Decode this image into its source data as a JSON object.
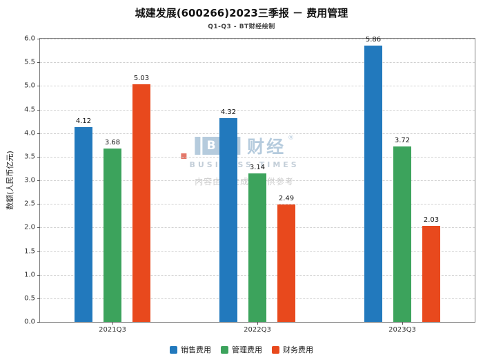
{
  "title": "城建发展(600266)2023三季报 － 费用管理",
  "subtitle": "Q1-Q3 - BT财经绘制",
  "watermark": {
    "logo_b": "B",
    "logo_t": "T",
    "logo_cn": "财经",
    "registered_mark": "®",
    "sub_text": "BUSINESS TIMES",
    "disclaimer": "内容由AI生成，仅供参考"
  },
  "chart_data": {
    "type": "bar",
    "categories": [
      "2021Q3",
      "2022Q3",
      "2023Q3"
    ],
    "series": [
      {
        "name": "销售费用",
        "color": "#2279bd",
        "values": [
          4.12,
          4.32,
          5.86
        ]
      },
      {
        "name": "管理费用",
        "color": "#3ca35c",
        "values": [
          3.68,
          3.14,
          3.72
        ]
      },
      {
        "name": "财务费用",
        "color": "#e8491d",
        "values": [
          5.03,
          2.49,
          2.03
        ]
      }
    ],
    "xlabel": "",
    "ylabel": "数额(人民币亿元)",
    "ylim": [
      0,
      6
    ],
    "ytick_step": 0.5,
    "grid": true,
    "grid_style": "dashed",
    "legend_position": "bottom",
    "bar_value_labels": true
  }
}
